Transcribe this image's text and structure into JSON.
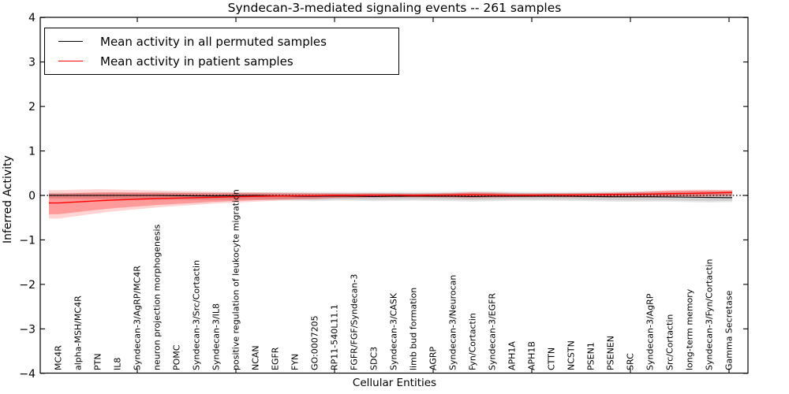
{
  "title": "Syndecan-3-mediated signaling events -- 261 samples",
  "chart_data": {
    "type": "line",
    "title": "Syndecan-3-mediated signaling events -- 261 samples",
    "xlabel": "Cellular Entities",
    "ylabel": "Inferred Activity",
    "ylim": [
      -4,
      4
    ],
    "ytick_labels": [
      "4",
      "3",
      "2",
      "1",
      "0",
      "−1",
      "−2",
      "−3",
      "−4"
    ],
    "ytick_values": [
      4,
      3,
      2,
      1,
      0,
      -1,
      -2,
      -3,
      -4
    ],
    "xtick_values": [
      5,
      10,
      15,
      20,
      25,
      30,
      35
    ],
    "grid": false,
    "legend_position": "upper left",
    "zero_line_style": "dotted",
    "categories": [
      "MC4R",
      "alpha-MSH/MC4R",
      "PTN",
      "IL8",
      "Syndecan-3/AgRP/MC4R",
      "neuron projection morphogenesis",
      "POMC",
      "Syndecan-3/Src/Cortactin",
      "Syndecan-3/IL8",
      "positive regulation of leukocyte migration",
      "NCAN",
      "EGFR",
      "FYN",
      "GO:0007205",
      "RP11-540L11.1",
      "FGFR/FGF/Syndecan-3",
      "SDC3",
      "Syndecan-3/CASK",
      "limb bud formation",
      "AGRP",
      "Syndecan-3/Neurocan",
      "Fyn/Cortactin",
      "Syndecan-3/EGFR",
      "APH1A",
      "APH1B",
      "CTTN",
      "NCSTN",
      "PSEN1",
      "PSENEN",
      "SRC",
      "Syndecan-3/AgRP",
      "Src/Cortactin",
      "long-term memory",
      "Syndecan-3/Fyn/Cortactin",
      "Gamma Secretase"
    ],
    "series": [
      {
        "name": "Mean activity in all permuted samples",
        "color": "#000000",
        "values": [
          0,
          0,
          0,
          0,
          0,
          0,
          -0.005,
          -0.01,
          -0.01,
          -0.005,
          0,
          -0.01,
          -0.02,
          -0.02,
          -0.015,
          -0.02,
          -0.025,
          -0.02,
          -0.015,
          -0.02,
          -0.02,
          -0.025,
          -0.02,
          -0.02,
          -0.02,
          -0.02,
          -0.02,
          -0.025,
          -0.03,
          -0.03,
          -0.03,
          -0.035,
          -0.04,
          -0.045,
          -0.05
        ],
        "band_upper": [
          0.06,
          0.06,
          0.065,
          0.07,
          0.07,
          0.07,
          0.07,
          0.07,
          0.07,
          0.07,
          0.07,
          0.075,
          0.08,
          0.08,
          0.08,
          0.08,
          0.08,
          0.08,
          0.08,
          0.08,
          0.085,
          0.09,
          0.09,
          0.085,
          0.08,
          0.08,
          0.08,
          0.085,
          0.09,
          0.09,
          0.09,
          0.09,
          0.095,
          0.1,
          0.1
        ],
        "band_lower": [
          -0.08,
          -0.085,
          -0.09,
          -0.095,
          -0.1,
          -0.1,
          -0.105,
          -0.11,
          -0.11,
          -0.105,
          -0.1,
          -0.11,
          -0.12,
          -0.13,
          -0.12,
          -0.12,
          -0.13,
          -0.125,
          -0.12,
          -0.125,
          -0.13,
          -0.14,
          -0.13,
          -0.12,
          -0.12,
          -0.12,
          -0.125,
          -0.13,
          -0.14,
          -0.145,
          -0.14,
          -0.14,
          -0.15,
          -0.16,
          -0.15
        ]
      },
      {
        "name": "Mean activity in patient samples",
        "color": "#ff0000",
        "values": [
          -0.17,
          -0.145,
          -0.12,
          -0.1,
          -0.085,
          -0.07,
          -0.06,
          -0.05,
          -0.04,
          -0.03,
          -0.02,
          -0.015,
          -0.01,
          -0.005,
          0,
          0,
          0.005,
          0.005,
          0,
          0.005,
          0.01,
          0.015,
          0.01,
          0.005,
          0.005,
          0.01,
          0.01,
          0.015,
          0.02,
          0.025,
          0.03,
          0.04,
          0.045,
          0.055,
          0.065
        ],
        "band_upper": [
          0.12,
          0.13,
          0.14,
          0.13,
          0.12,
          0.11,
          0.1,
          0.09,
          0.08,
          0.075,
          0.07,
          0.065,
          0.06,
          0.055,
          0.05,
          0.05,
          0.055,
          0.05,
          0.045,
          0.05,
          0.06,
          0.08,
          0.07,
          0.055,
          0.05,
          0.05,
          0.055,
          0.06,
          0.065,
          0.08,
          0.1,
          0.12,
          0.13,
          0.13,
          0.125
        ],
        "band_lower": [
          -0.52,
          -0.46,
          -0.4,
          -0.35,
          -0.31,
          -0.27,
          -0.24,
          -0.21,
          -0.18,
          -0.16,
          -0.14,
          -0.12,
          -0.1,
          -0.09,
          -0.07,
          -0.06,
          -0.055,
          -0.05,
          -0.05,
          -0.05,
          -0.06,
          -0.07,
          -0.06,
          -0.05,
          -0.045,
          -0.045,
          -0.05,
          -0.05,
          -0.05,
          -0.05,
          -0.05,
          -0.045,
          -0.04,
          -0.03,
          -0.02
        ]
      }
    ]
  }
}
